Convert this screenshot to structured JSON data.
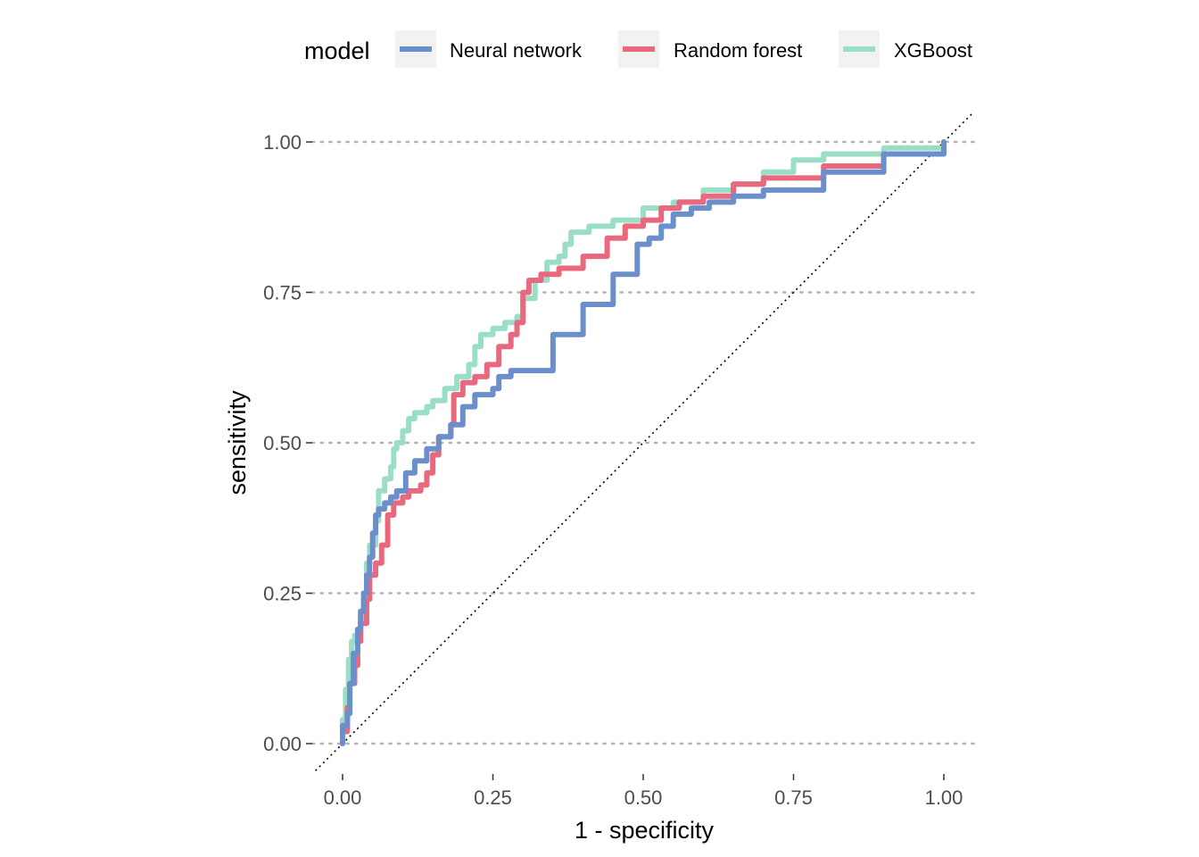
{
  "chart_data": {
    "type": "line",
    "xlabel": "1 - specificity",
    "ylabel": "sensitivity",
    "xlim": [
      0,
      1
    ],
    "ylim": [
      0,
      1
    ],
    "x_ticks": [
      "0.00",
      "0.25",
      "0.50",
      "0.75",
      "1.00"
    ],
    "y_ticks": [
      "0.00",
      "0.25",
      "0.50",
      "0.75",
      "1.00"
    ],
    "grid": "horizontal-dotted",
    "reference_line": "diagonal dotted y = x",
    "legend": {
      "title": "model",
      "position": "top",
      "entries": [
        "Neural network",
        "Random forest",
        "XGBoost"
      ]
    },
    "series": [
      {
        "name": "Neural network",
        "color": "#6A8FCB",
        "points": [
          [
            0,
            0
          ],
          [
            0,
            0.03
          ],
          [
            0.008,
            0.05
          ],
          [
            0.012,
            0.1
          ],
          [
            0.018,
            0.15
          ],
          [
            0.025,
            0.19
          ],
          [
            0.03,
            0.22
          ],
          [
            0.035,
            0.25
          ],
          [
            0.04,
            0.28
          ],
          [
            0.045,
            0.31
          ],
          [
            0.05,
            0.35
          ],
          [
            0.055,
            0.38
          ],
          [
            0.06,
            0.39
          ],
          [
            0.07,
            0.4
          ],
          [
            0.08,
            0.41
          ],
          [
            0.09,
            0.42
          ],
          [
            0.1,
            0.42
          ],
          [
            0.105,
            0.45
          ],
          [
            0.12,
            0.47
          ],
          [
            0.14,
            0.49
          ],
          [
            0.16,
            0.51
          ],
          [
            0.18,
            0.53
          ],
          [
            0.2,
            0.56
          ],
          [
            0.22,
            0.58
          ],
          [
            0.25,
            0.59
          ],
          [
            0.26,
            0.61
          ],
          [
            0.28,
            0.62
          ],
          [
            0.35,
            0.68
          ],
          [
            0.4,
            0.73
          ],
          [
            0.45,
            0.78
          ],
          [
            0.49,
            0.83
          ],
          [
            0.51,
            0.84
          ],
          [
            0.53,
            0.86
          ],
          [
            0.55,
            0.88
          ],
          [
            0.58,
            0.89
          ],
          [
            0.61,
            0.9
          ],
          [
            0.65,
            0.91
          ],
          [
            0.7,
            0.92
          ],
          [
            0.8,
            0.95
          ],
          [
            0.9,
            0.98
          ],
          [
            1,
            1
          ]
        ]
      },
      {
        "name": "Random forest",
        "color": "#E8687E",
        "points": [
          [
            0,
            0
          ],
          [
            0,
            0.02
          ],
          [
            0.008,
            0.06
          ],
          [
            0.012,
            0.1
          ],
          [
            0.02,
            0.13
          ],
          [
            0.025,
            0.17
          ],
          [
            0.03,
            0.2
          ],
          [
            0.04,
            0.24
          ],
          [
            0.045,
            0.28
          ],
          [
            0.055,
            0.3
          ],
          [
            0.065,
            0.33
          ],
          [
            0.075,
            0.38
          ],
          [
            0.085,
            0.4
          ],
          [
            0.1,
            0.41
          ],
          [
            0.11,
            0.42
          ],
          [
            0.13,
            0.43
          ],
          [
            0.14,
            0.45
          ],
          [
            0.15,
            0.48
          ],
          [
            0.16,
            0.51
          ],
          [
            0.18,
            0.53
          ],
          [
            0.185,
            0.58
          ],
          [
            0.2,
            0.6
          ],
          [
            0.22,
            0.61
          ],
          [
            0.24,
            0.63
          ],
          [
            0.26,
            0.66
          ],
          [
            0.28,
            0.68
          ],
          [
            0.29,
            0.7
          ],
          [
            0.3,
            0.75
          ],
          [
            0.31,
            0.77
          ],
          [
            0.33,
            0.78
          ],
          [
            0.36,
            0.79
          ],
          [
            0.4,
            0.81
          ],
          [
            0.44,
            0.84
          ],
          [
            0.47,
            0.86
          ],
          [
            0.5,
            0.87
          ],
          [
            0.53,
            0.89
          ],
          [
            0.56,
            0.9
          ],
          [
            0.6,
            0.91
          ],
          [
            0.65,
            0.93
          ],
          [
            0.7,
            0.94
          ],
          [
            0.8,
            0.96
          ],
          [
            0.9,
            0.98
          ],
          [
            1,
            1
          ]
        ]
      },
      {
        "name": "XGBoost",
        "color": "#9BDEC6",
        "points": [
          [
            0,
            0
          ],
          [
            0,
            0.04
          ],
          [
            0.005,
            0.09
          ],
          [
            0.01,
            0.14
          ],
          [
            0.015,
            0.17
          ],
          [
            0.02,
            0.18
          ],
          [
            0.03,
            0.21
          ],
          [
            0.035,
            0.25
          ],
          [
            0.04,
            0.3
          ],
          [
            0.045,
            0.33
          ],
          [
            0.055,
            0.37
          ],
          [
            0.06,
            0.42
          ],
          [
            0.07,
            0.44
          ],
          [
            0.08,
            0.46
          ],
          [
            0.085,
            0.49
          ],
          [
            0.09,
            0.5
          ],
          [
            0.1,
            0.52
          ],
          [
            0.11,
            0.54
          ],
          [
            0.12,
            0.55
          ],
          [
            0.14,
            0.56
          ],
          [
            0.15,
            0.57
          ],
          [
            0.17,
            0.59
          ],
          [
            0.19,
            0.61
          ],
          [
            0.21,
            0.63
          ],
          [
            0.22,
            0.66
          ],
          [
            0.23,
            0.68
          ],
          [
            0.25,
            0.69
          ],
          [
            0.27,
            0.7
          ],
          [
            0.29,
            0.71
          ],
          [
            0.3,
            0.74
          ],
          [
            0.32,
            0.77
          ],
          [
            0.34,
            0.8
          ],
          [
            0.36,
            0.81
          ],
          [
            0.37,
            0.83
          ],
          [
            0.38,
            0.85
          ],
          [
            0.41,
            0.86
          ],
          [
            0.45,
            0.87
          ],
          [
            0.5,
            0.89
          ],
          [
            0.55,
            0.9
          ],
          [
            0.6,
            0.92
          ],
          [
            0.65,
            0.93
          ],
          [
            0.7,
            0.95
          ],
          [
            0.75,
            0.97
          ],
          [
            0.8,
            0.98
          ],
          [
            0.9,
            0.99
          ],
          [
            1,
            1
          ]
        ]
      }
    ]
  }
}
